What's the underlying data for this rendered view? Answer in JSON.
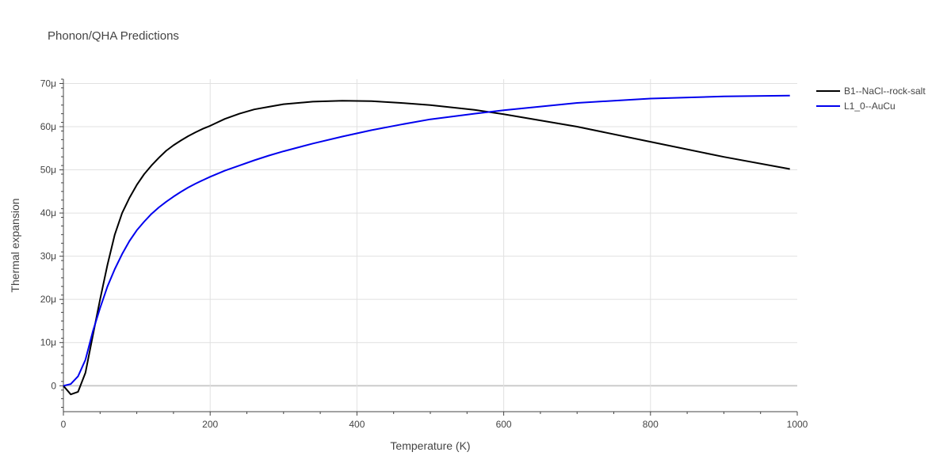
{
  "chart_data": {
    "type": "line",
    "title": "Phonon/QHA Predictions",
    "xlabel": "Temperature (K)",
    "ylabel": "Thermal expansion",
    "xlim": [
      0,
      1000
    ],
    "ylim": [
      -6e-06,
      7.1e-05
    ],
    "x_ticks": [
      {
        "value": 0,
        "label": "0"
      },
      {
        "value": 200,
        "label": "200"
      },
      {
        "value": 400,
        "label": "400"
      },
      {
        "value": 600,
        "label": "600"
      },
      {
        "value": 800,
        "label": "800"
      },
      {
        "value": 1000,
        "label": "1000"
      }
    ],
    "y_ticks": [
      {
        "value": 0,
        "label": "0"
      },
      {
        "value": 1e-05,
        "label": "10μ"
      },
      {
        "value": 2e-05,
        "label": "20μ"
      },
      {
        "value": 3e-05,
        "label": "30μ"
      },
      {
        "value": 4e-05,
        "label": "40μ"
      },
      {
        "value": 5e-05,
        "label": "50μ"
      },
      {
        "value": 6e-05,
        "label": "60μ"
      },
      {
        "value": 7e-05,
        "label": "70μ"
      }
    ],
    "grid": true,
    "legend_position": "top-right",
    "series": [
      {
        "name": "B1--NaCl--rock-salt",
        "color": "#000000",
        "x": [
          0,
          10,
          20,
          30,
          40,
          50,
          60,
          70,
          80,
          90,
          100,
          110,
          120,
          130,
          140,
          150,
          160,
          170,
          180,
          190,
          200,
          220,
          240,
          260,
          280,
          300,
          340,
          380,
          420,
          460,
          500,
          560,
          600,
          700,
          800,
          900,
          990
        ],
        "y": [
          0,
          -2e-06,
          -1.4e-06,
          3e-06,
          1.15e-05,
          2e-05,
          2.8e-05,
          3.5e-05,
          4e-05,
          4.35e-05,
          4.65e-05,
          4.9e-05,
          5.1e-05,
          5.28e-05,
          5.44e-05,
          5.57e-05,
          5.68e-05,
          5.78e-05,
          5.87e-05,
          5.95e-05,
          6.02e-05,
          6.18e-05,
          6.3e-05,
          6.4e-05,
          6.46e-05,
          6.52e-05,
          6.58e-05,
          6.6e-05,
          6.59e-05,
          6.55e-05,
          6.5e-05,
          6.39e-05,
          6.29e-05,
          6e-05,
          5.65e-05,
          5.3e-05,
          5.02e-05
        ]
      },
      {
        "name": "L1_0--AuCu",
        "color": "#0000ee",
        "x": [
          0,
          10,
          20,
          30,
          40,
          50,
          60,
          70,
          80,
          90,
          100,
          110,
          120,
          130,
          140,
          150,
          160,
          170,
          180,
          190,
          200,
          220,
          240,
          260,
          280,
          300,
          340,
          380,
          420,
          460,
          500,
          560,
          600,
          700,
          800,
          900,
          990
        ],
        "y": [
          0,
          4e-07,
          2.2e-06,
          6e-06,
          1.25e-05,
          1.8e-05,
          2.3e-05,
          2.7e-05,
          3.05e-05,
          3.35e-05,
          3.6e-05,
          3.8e-05,
          3.98e-05,
          4.13e-05,
          4.26e-05,
          4.38e-05,
          4.49e-05,
          4.59e-05,
          4.68e-05,
          4.76e-05,
          4.84e-05,
          4.98e-05,
          5.1e-05,
          5.22e-05,
          5.33e-05,
          5.43e-05,
          5.61e-05,
          5.77e-05,
          5.92e-05,
          6.05e-05,
          6.17e-05,
          6.3e-05,
          6.38e-05,
          6.55e-05,
          6.65e-05,
          6.7e-05,
          6.72e-05
        ]
      }
    ]
  }
}
